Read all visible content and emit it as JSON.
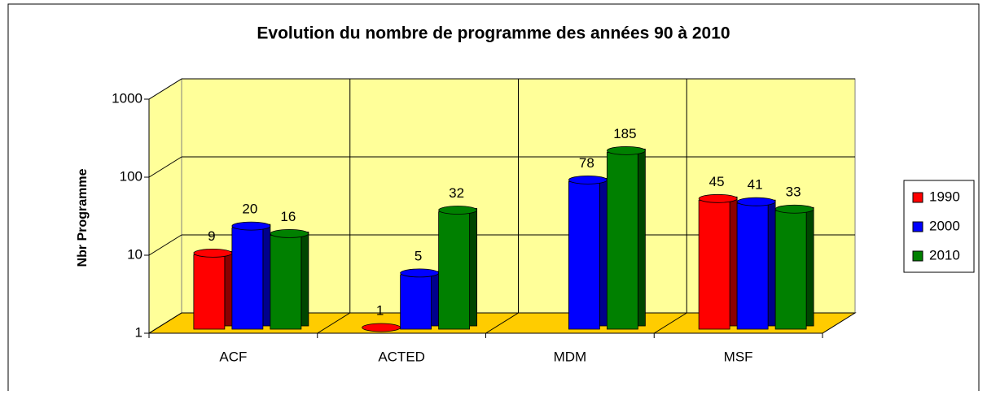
{
  "chart_data": {
    "type": "bar3d",
    "title": "Evolution du nombre de programme des années 90 à 2010",
    "ylabel": "Nbr Programme",
    "categories": [
      "ACF",
      "ACTED",
      "MDM",
      "MSF"
    ],
    "series": [
      {
        "name": "1990",
        "color": "#ff0000",
        "values": [
          9,
          1,
          null,
          45
        ]
      },
      {
        "name": "2000",
        "color": "#0000ff",
        "values": [
          20,
          5,
          78,
          41
        ]
      },
      {
        "name": "2010",
        "color": "#008000",
        "values": [
          16,
          32,
          185,
          33
        ]
      }
    ],
    "ylim": [
      1,
      1000
    ],
    "yticks": [
      1,
      10,
      100,
      1000
    ],
    "log": true,
    "grid": true,
    "legend": "right",
    "wall_color": "#ffff99",
    "floor_color": "#ffcc00"
  }
}
